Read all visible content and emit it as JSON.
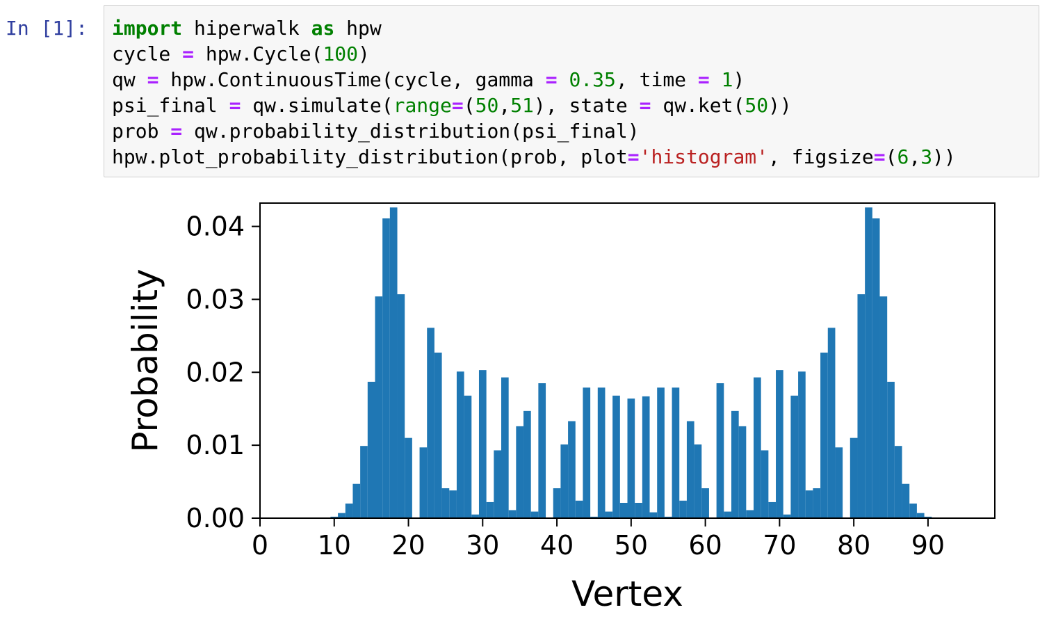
{
  "cell": {
    "prompt": "In [1]:",
    "code_lines": [
      [
        {
          "t": "kw",
          "s": "import"
        },
        {
          "t": "",
          "s": " hiperwalk "
        },
        {
          "t": "kw",
          "s": "as"
        },
        {
          "t": "",
          "s": " hpw"
        }
      ],
      [
        {
          "t": "",
          "s": "cycle "
        },
        {
          "t": "op",
          "s": "="
        },
        {
          "t": "",
          "s": " hpw.Cycle("
        },
        {
          "t": "num",
          "s": "100"
        },
        {
          "t": "",
          "s": ")"
        }
      ],
      [
        {
          "t": "",
          "s": "qw "
        },
        {
          "t": "op",
          "s": "="
        },
        {
          "t": "",
          "s": " hpw.ContinuousTime(cycle, gamma "
        },
        {
          "t": "op",
          "s": "="
        },
        {
          "t": "",
          "s": " "
        },
        {
          "t": "num",
          "s": "0.35"
        },
        {
          "t": "",
          "s": ", time "
        },
        {
          "t": "op",
          "s": "="
        },
        {
          "t": "",
          "s": " "
        },
        {
          "t": "num",
          "s": "1"
        },
        {
          "t": "",
          "s": ")"
        }
      ],
      [
        {
          "t": "",
          "s": "psi_final "
        },
        {
          "t": "op",
          "s": "="
        },
        {
          "t": "",
          "s": " qw.simulate("
        },
        {
          "t": "bi",
          "s": "range"
        },
        {
          "t": "op",
          "s": "="
        },
        {
          "t": "",
          "s": "("
        },
        {
          "t": "num",
          "s": "50"
        },
        {
          "t": "",
          "s": ","
        },
        {
          "t": "num",
          "s": "51"
        },
        {
          "t": "",
          "s": "), state "
        },
        {
          "t": "op",
          "s": "="
        },
        {
          "t": "",
          "s": " qw.ket("
        },
        {
          "t": "num",
          "s": "50"
        },
        {
          "t": "",
          "s": "))"
        }
      ],
      [
        {
          "t": "",
          "s": "prob "
        },
        {
          "t": "op",
          "s": "="
        },
        {
          "t": "",
          "s": " qw.probability_distribution(psi_final)"
        }
      ],
      [
        {
          "t": "",
          "s": "hpw.plot_probability_distribution(prob, plot"
        },
        {
          "t": "op",
          "s": "="
        },
        {
          "t": "str",
          "s": "'histogram'"
        },
        {
          "t": "",
          "s": ", figsize"
        },
        {
          "t": "op",
          "s": "="
        },
        {
          "t": "",
          "s": "("
        },
        {
          "t": "num",
          "s": "6"
        },
        {
          "t": "",
          "s": ","
        },
        {
          "t": "num",
          "s": "3"
        },
        {
          "t": "",
          "s": "))"
        }
      ]
    ]
  },
  "chart_data": {
    "type": "bar",
    "title": "",
    "xlabel": "Vertex",
    "ylabel": "Probability",
    "xlim": [
      0,
      99
    ],
    "ylim": [
      0,
      0.0432
    ],
    "xticks": [
      0,
      10,
      20,
      30,
      40,
      50,
      60,
      70,
      80,
      90
    ],
    "yticks": [
      0.0,
      0.01,
      0.02,
      0.03,
      0.04
    ],
    "ytick_labels": [
      "0.00",
      "0.01",
      "0.02",
      "0.03",
      "0.04"
    ],
    "bar_color": "#1f77b4",
    "grid": false,
    "x": [
      10,
      11,
      12,
      13,
      14,
      15,
      16,
      17,
      18,
      19,
      20,
      21,
      22,
      23,
      24,
      25,
      26,
      27,
      28,
      29,
      30,
      31,
      32,
      33,
      34,
      35,
      36,
      37,
      38,
      39,
      40,
      41,
      42,
      43,
      44,
      45,
      46,
      47,
      48,
      49,
      50,
      51,
      52,
      53,
      54,
      55,
      56,
      57,
      58,
      59,
      60,
      61,
      62,
      63,
      64,
      65,
      66,
      67,
      68,
      69,
      70,
      71,
      72,
      73,
      74,
      75,
      76,
      77,
      78,
      79,
      80,
      81,
      82,
      83,
      84,
      85,
      86,
      87,
      88,
      89,
      90
    ],
    "values": [
      0.0002,
      0.0007,
      0.002,
      0.0047,
      0.0099,
      0.0187,
      0.0304,
      0.0411,
      0.0426,
      0.0307,
      0.011,
      0.0001,
      0.0097,
      0.0261,
      0.0227,
      0.0041,
      0.0038,
      0.0201,
      0.0168,
      0.0005,
      0.0203,
      0.0022,
      0.0093,
      0.0193,
      0.0011,
      0.0126,
      0.0147,
      0.0009,
      0.0185,
      0.0001,
      0.0041,
      0.0101,
      0.0133,
      0.0024,
      0.0179,
      0.0002,
      0.0179,
      0.0009,
      0.0168,
      0.0021,
      0.0164,
      0.0021,
      0.0167,
      0.0008,
      0.0179,
      0.0002,
      0.0179,
      0.0024,
      0.0133,
      0.0101,
      0.0041,
      0.0001,
      0.0185,
      0.0009,
      0.0147,
      0.0126,
      0.0011,
      0.0193,
      0.0093,
      0.0022,
      0.0203,
      0.0005,
      0.0168,
      0.0201,
      0.0038,
      0.0041,
      0.0227,
      0.0261,
      0.0097,
      0.0001,
      0.011,
      0.0307,
      0.0426,
      0.0411,
      0.0304,
      0.0187,
      0.0099,
      0.0047,
      0.002,
      0.0007,
      0.0002
    ]
  }
}
